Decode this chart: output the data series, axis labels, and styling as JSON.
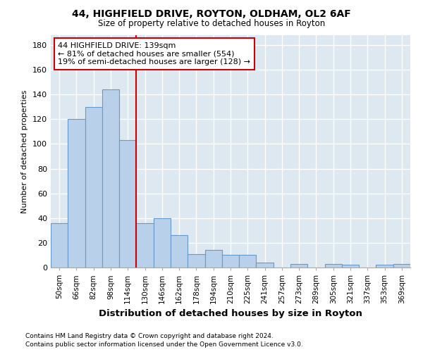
{
  "title1": "44, HIGHFIELD DRIVE, ROYTON, OLDHAM, OL2 6AF",
  "title2": "Size of property relative to detached houses in Royton",
  "xlabel": "Distribution of detached houses by size in Royton",
  "ylabel": "Number of detached properties",
  "footnote1": "Contains HM Land Registry data © Crown copyright and database right 2024.",
  "footnote2": "Contains public sector information licensed under the Open Government Licence v3.0.",
  "bar_labels": [
    "50sqm",
    "66sqm",
    "82sqm",
    "98sqm",
    "114sqm",
    "130sqm",
    "146sqm",
    "162sqm",
    "178sqm",
    "194sqm",
    "210sqm",
    "225sqm",
    "241sqm",
    "257sqm",
    "273sqm",
    "289sqm",
    "305sqm",
    "321sqm",
    "337sqm",
    "353sqm",
    "369sqm"
  ],
  "bar_values": [
    36,
    120,
    130,
    144,
    103,
    36,
    40,
    26,
    11,
    14,
    10,
    10,
    4,
    0,
    3,
    0,
    3,
    2,
    0,
    2,
    3
  ],
  "bar_color": "#b8d0ea",
  "bar_edgecolor": "#6699cc",
  "ylim": [
    0,
    188
  ],
  "yticks": [
    0,
    20,
    40,
    60,
    80,
    100,
    120,
    140,
    160,
    180
  ],
  "vline_x_index": 5,
  "vline_color": "#cc0000",
  "annotation_text": "44 HIGHFIELD DRIVE: 139sqm\n← 81% of detached houses are smaller (554)\n19% of semi-detached houses are larger (128) →",
  "annotation_box_color": "#ffffff",
  "annotation_box_edgecolor": "#cc0000",
  "bg_color": "#dde8f0",
  "grid_color": "#ffffff",
  "fig_bg": "#ffffff"
}
